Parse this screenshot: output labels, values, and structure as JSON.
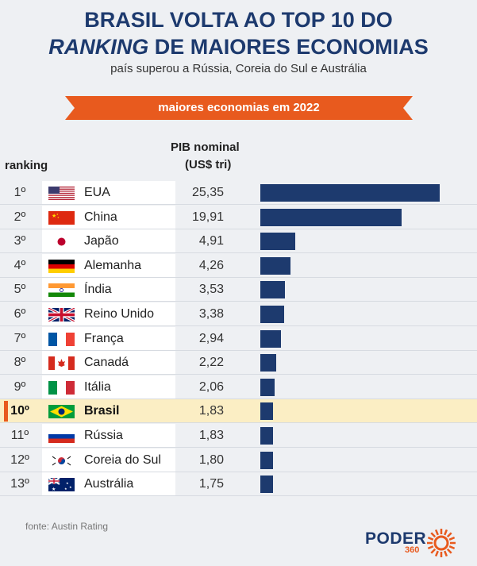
{
  "header": {
    "title_line1": "BRASIL VOLTA AO TOP 10 DO",
    "title_line2_italic": "RANKING",
    "title_line2_rest": " DE MAIORES ECONOMIAS",
    "subtitle": "país superou a Rússia, Coreia do Sul e Austrália",
    "banner": "maiores economias em 2022"
  },
  "columns": {
    "rank": "ranking",
    "pib_line1": "PIB nominal",
    "pib_line2": "(US$ tri)"
  },
  "colors": {
    "bar": "#1d3a6e",
    "banner": "#e85a1e",
    "highlight": "#fbeec4",
    "marker": "#e85a1e"
  },
  "chart_data": {
    "type": "bar",
    "orientation": "horizontal",
    "categories": [
      "EUA",
      "China",
      "Japão",
      "Alemanha",
      "Índia",
      "Reino Unido",
      "França",
      "Canadá",
      "Itália",
      "Brasil",
      "Rússia",
      "Coreia do Sul",
      "Austrália"
    ],
    "ranks": [
      "1º",
      "2º",
      "3º",
      "4º",
      "5º",
      "6º",
      "7º",
      "8º",
      "9º",
      "10º",
      "11º",
      "12º",
      "13º"
    ],
    "values": [
      25.35,
      19.91,
      4.91,
      4.26,
      3.53,
      3.38,
      2.94,
      2.22,
      2.06,
      1.83,
      1.83,
      1.8,
      1.75
    ],
    "value_labels": [
      "25,35",
      "19,91",
      "4,91",
      "4,26",
      "3,53",
      "3,38",
      "2,94",
      "2,22",
      "2,06",
      "1,83",
      "1,83",
      "1,80",
      "1,75"
    ],
    "flags": [
      "flag-usa",
      "flag-china",
      "flag-japan",
      "flag-germany",
      "flag-india",
      "flag-uk",
      "flag-france",
      "flag-canada",
      "flag-italy",
      "flag-brazil",
      "flag-russia",
      "flag-south-korea",
      "flag-australia"
    ],
    "highlight": "Brasil",
    "title": "maiores economias em 2022",
    "ylabel": "PIB nominal (US$ tri)"
  },
  "footer": {
    "source": "fonte: Austin Rating",
    "logo_word": "PODER",
    "logo_number": "360"
  }
}
